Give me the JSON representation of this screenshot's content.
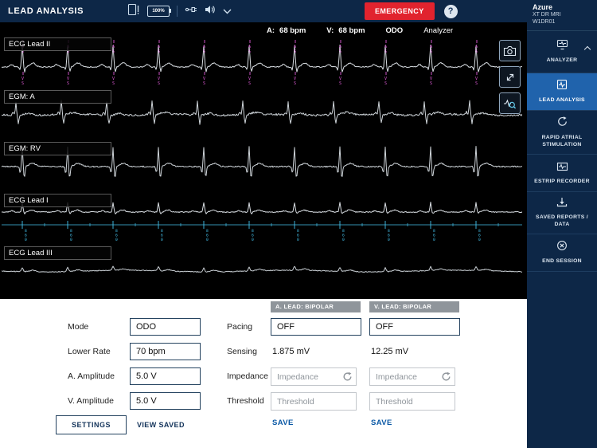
{
  "topbar": {
    "title": "LEAD ANALYSIS",
    "battery_label": "100%",
    "emergency_label": "EMERGENCY",
    "help_label": "?"
  },
  "status": {
    "a_label": "A:",
    "a_value": "68 bpm",
    "v_label": "V:",
    "v_value": "68 bpm",
    "mode": "ODO",
    "source": "Analyzer"
  },
  "channels": [
    {
      "label": "ECG Lead II",
      "marker_top": "AS",
      "marker_bottom": "VS",
      "marker_color": "#e05ad8"
    },
    {
      "label": "EGM: A"
    },
    {
      "label": "EGM: RV"
    },
    {
      "label": "ECG Lead I",
      "interval": "860",
      "marker_color": "#45c2ec"
    },
    {
      "label": "ECG Lead III"
    }
  ],
  "sidebar": {
    "device_name": "Azure",
    "device_model": "XT DR MRI",
    "device_serial": "W1DR01",
    "analyzer_label": "ANALYZER",
    "items": [
      {
        "label": "LEAD ANALYSIS"
      },
      {
        "label": "RAPID ATRIAL STIMULATION"
      },
      {
        "label": "ESTRIP RECORDER"
      },
      {
        "label": "SAVED REPORTS / DATA"
      },
      {
        "label": "END SESSION"
      }
    ]
  },
  "form": {
    "left_rows": [
      {
        "label": "Mode",
        "value": "ODO"
      },
      {
        "label": "Lower Rate",
        "value": "70 bpm"
      },
      {
        "label": "A. Amplitude",
        "value": "5.0 V"
      },
      {
        "label": "V. Amplitude",
        "value": "5.0 V"
      }
    ],
    "settings_label": "SETTINGS",
    "view_saved_label": "VIEW SAVED",
    "row_labels": {
      "pacing": "Pacing",
      "sensing": "Sensing",
      "impedance": "Impedance",
      "threshold": "Threshold"
    },
    "columns": [
      {
        "header": "A. LEAD: BIPOLAR",
        "pacing_value": "OFF",
        "sensing_value": "1.875 mV",
        "impedance_placeholder": "Impedance",
        "threshold_placeholder": "Threshold",
        "save_label": "SAVE"
      },
      {
        "header": "V. LEAD: BIPOLAR",
        "pacing_value": "OFF",
        "sensing_value": "12.25 mV",
        "impedance_placeholder": "Impedance",
        "threshold_placeholder": "Threshold",
        "save_label": "SAVE"
      }
    ]
  }
}
